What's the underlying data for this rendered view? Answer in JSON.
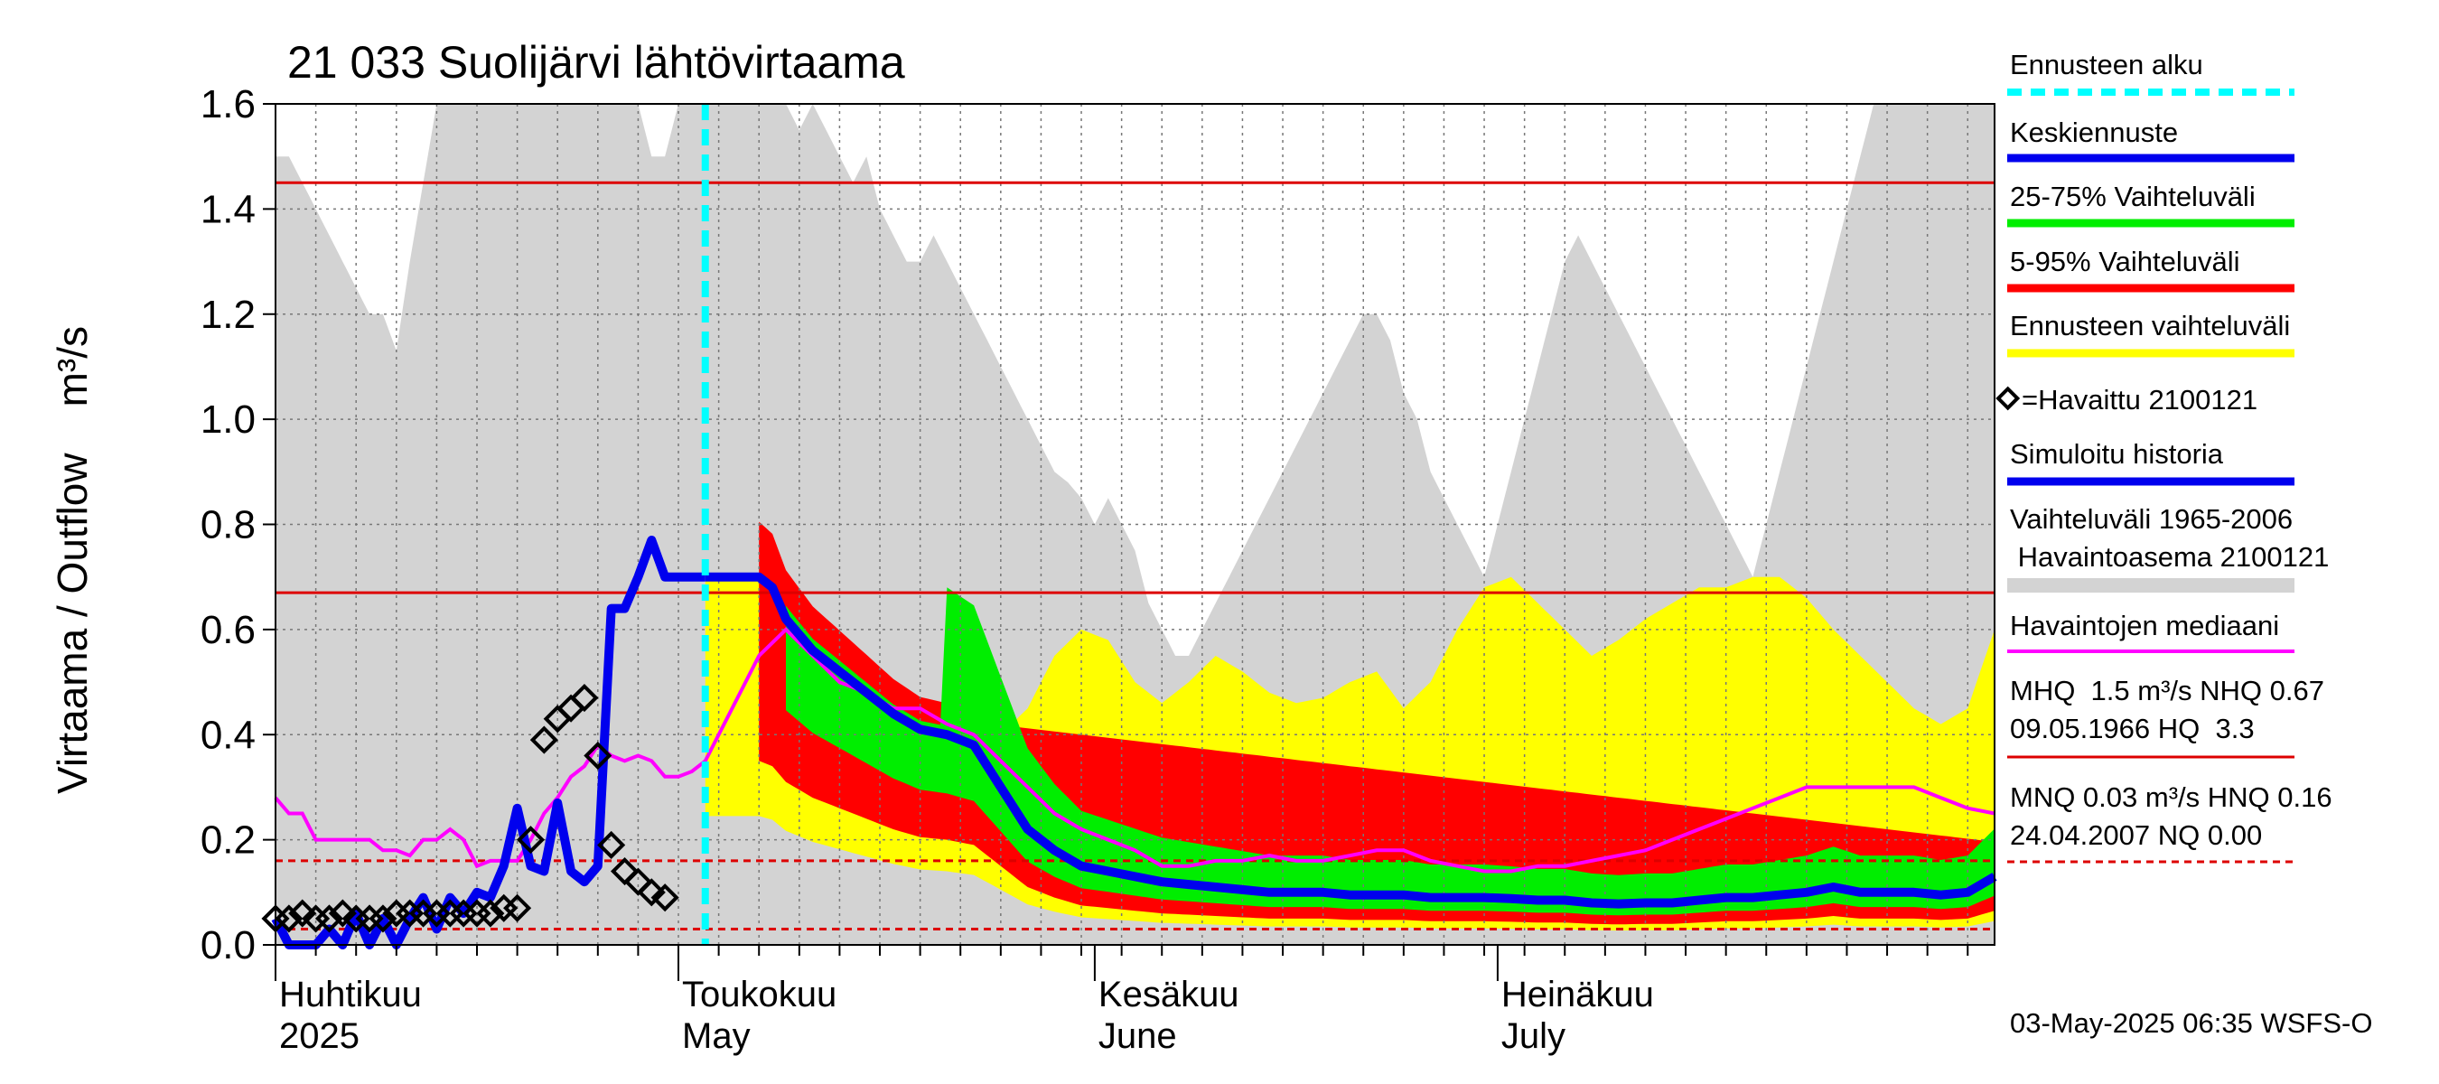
{
  "chart_data": {
    "type": "line",
    "title": "21 033 Suolijärvi lähtövirtaama",
    "ylabel": "Virtaama / Outflow    m³/s",
    "ylim": [
      0,
      1.6
    ],
    "yticks": [
      "0.0",
      "0.2",
      "0.4",
      "0.6",
      "0.8",
      "1.0",
      "1.2",
      "1.4",
      "1.6"
    ],
    "xlim_day": [
      0,
      128
    ],
    "forecast_start_day": 32,
    "months": [
      {
        "fi": "Huhtikuu",
        "en": "2025",
        "day": 0
      },
      {
        "fi": "Toukokuu",
        "en": "May",
        "day": 30
      },
      {
        "fi": "Kesäkuu",
        "en": "June",
        "day": 61
      },
      {
        "fi": "Heinäkuu",
        "en": "July",
        "day": 91
      }
    ],
    "reference_lines": {
      "MHQ": 1.45,
      "NHQ": 0.67,
      "HNQ": 0.16,
      "MNQ": 0.03
    },
    "series": [
      {
        "name": "Vaihteluväli 1965-2006 max",
        "x": [
          0,
          1,
          2,
          3,
          4,
          5,
          6,
          7,
          8,
          9,
          10,
          11,
          12,
          13,
          14,
          15,
          16,
          17,
          18,
          19,
          20,
          21,
          22,
          23,
          24,
          25,
          26,
          27,
          28,
          29,
          30,
          31,
          32,
          33,
          34,
          35,
          36,
          37,
          38,
          39,
          40,
          41,
          42,
          43,
          44,
          45,
          46,
          47,
          48,
          49,
          50,
          51,
          52,
          53,
          54,
          55,
          56,
          57,
          58,
          59,
          60,
          61,
          62,
          63,
          64,
          65,
          66,
          67,
          68,
          69,
          70,
          71,
          72,
          73,
          74,
          75,
          76,
          77,
          78,
          79,
          80,
          81,
          82,
          83,
          84,
          85,
          86,
          87,
          88,
          89,
          90,
          91,
          92,
          93,
          94,
          95,
          96,
          97,
          98,
          99,
          100,
          101,
          102,
          103,
          104,
          105,
          106,
          107,
          108,
          109,
          110,
          111,
          112,
          113,
          114,
          115,
          116,
          117,
          118,
          119,
          120,
          121,
          122,
          123,
          124,
          125,
          126,
          127,
          128
        ],
        "values": [
          1.5,
          1.5,
          1.45,
          1.4,
          1.35,
          1.3,
          1.25,
          1.2,
          1.2,
          1.13,
          1.3,
          1.45,
          1.6,
          1.6,
          1.6,
          1.6,
          1.6,
          1.6,
          1.6,
          1.6,
          1.6,
          1.6,
          1.6,
          1.6,
          1.6,
          1.6,
          1.6,
          1.6,
          1.5,
          1.5,
          1.6,
          1.6,
          1.6,
          1.6,
          1.6,
          1.6,
          1.6,
          1.6,
          1.6,
          1.55,
          1.6,
          1.55,
          1.5,
          1.45,
          1.5,
          1.4,
          1.35,
          1.3,
          1.3,
          1.35,
          1.3,
          1.25,
          1.2,
          1.15,
          1.1,
          1.05,
          1.0,
          0.95,
          0.9,
          0.88,
          0.85,
          0.8,
          0.85,
          0.8,
          0.75,
          0.65,
          0.6,
          0.55,
          0.55,
          0.6,
          0.65,
          0.7,
          0.75,
          0.8,
          0.85,
          0.9,
          0.95,
          1.0,
          1.05,
          1.1,
          1.15,
          1.2,
          1.2,
          1.15,
          1.05,
          1.0,
          0.9,
          0.85,
          0.8,
          0.75,
          0.7,
          0.8,
          0.9,
          1.0,
          1.1,
          1.2,
          1.3,
          1.35,
          1.3,
          1.25,
          1.2,
          1.15,
          1.1,
          1.05,
          1.0,
          0.95,
          0.9,
          0.85,
          0.8,
          0.75,
          0.7,
          0.8,
          0.9,
          1.0,
          1.1,
          1.2,
          1.3,
          1.4,
          1.5,
          1.6,
          1.6,
          1.6,
          1.6,
          1.6,
          1.6,
          1.6,
          1.6,
          1.6,
          1.6
        ]
      },
      {
        "name": "Ennusteen vaihteluväli max",
        "x": [
          32,
          34,
          36,
          37,
          38,
          40,
          42,
          44,
          46,
          48,
          50,
          52,
          54,
          56,
          58,
          60,
          62,
          64,
          66,
          68,
          70,
          72,
          74,
          76,
          78,
          80,
          82,
          84,
          86,
          88,
          90,
          92,
          94,
          96,
          98,
          100,
          102,
          104,
          106,
          108,
          110,
          112,
          114,
          116,
          118,
          120,
          122,
          124,
          126,
          128
        ],
        "values": [
          0.7,
          0.7,
          0.7,
          0.69,
          0.67,
          0.6,
          0.55,
          0.52,
          0.48,
          0.46,
          0.46,
          0.4,
          0.4,
          0.45,
          0.55,
          0.6,
          0.58,
          0.5,
          0.46,
          0.5,
          0.55,
          0.52,
          0.48,
          0.46,
          0.47,
          0.5,
          0.52,
          0.45,
          0.5,
          0.6,
          0.68,
          0.7,
          0.65,
          0.6,
          0.55,
          0.58,
          0.62,
          0.65,
          0.68,
          0.68,
          0.7,
          0.7,
          0.66,
          0.6,
          0.55,
          0.5,
          0.45,
          0.42,
          0.45,
          0.6
        ]
      },
      {
        "name": "Keskiennuste",
        "x": [
          32,
          34,
          36,
          37,
          38,
          40,
          42,
          44,
          46,
          48,
          50,
          52,
          54,
          56,
          58,
          60,
          62,
          64,
          66,
          68,
          70,
          72,
          74,
          76,
          78,
          80,
          82,
          84,
          86,
          88,
          90,
          92,
          94,
          96,
          98,
          100,
          102,
          104,
          106,
          108,
          110,
          112,
          114,
          116,
          118,
          120,
          122,
          124,
          126,
          128
        ],
        "values": [
          0.7,
          0.7,
          0.7,
          0.68,
          0.62,
          0.56,
          0.52,
          0.48,
          0.44,
          0.41,
          0.4,
          0.38,
          0.3,
          0.22,
          0.18,
          0.15,
          0.14,
          0.13,
          0.12,
          0.115,
          0.11,
          0.105,
          0.1,
          0.1,
          0.1,
          0.095,
          0.095,
          0.095,
          0.09,
          0.09,
          0.09,
          0.088,
          0.085,
          0.085,
          0.08,
          0.078,
          0.08,
          0.08,
          0.085,
          0.09,
          0.09,
          0.095,
          0.1,
          0.11,
          0.1,
          0.1,
          0.1,
          0.095,
          0.1,
          0.13
        ]
      },
      {
        "name": "Havaintojen mediaani",
        "x": [
          0,
          1,
          2,
          3,
          4,
          5,
          6,
          7,
          8,
          9,
          10,
          11,
          12,
          13,
          14,
          15,
          16,
          17,
          18,
          19,
          20,
          21,
          22,
          23,
          24,
          25,
          26,
          27,
          28,
          29,
          30,
          31,
          32,
          33,
          34,
          36,
          38,
          40,
          42,
          44,
          46,
          48,
          50,
          52,
          54,
          56,
          58,
          60,
          62,
          64,
          66,
          68,
          70,
          72,
          74,
          76,
          78,
          80,
          82,
          84,
          86,
          88,
          90,
          92,
          94,
          96,
          98,
          100,
          102,
          104,
          106,
          108,
          110,
          112,
          114,
          116,
          118,
          120,
          122,
          124,
          126,
          128
        ],
        "values": [
          0.28,
          0.25,
          0.25,
          0.2,
          0.2,
          0.2,
          0.2,
          0.2,
          0.18,
          0.18,
          0.17,
          0.2,
          0.2,
          0.22,
          0.2,
          0.15,
          0.16,
          0.16,
          0.16,
          0.2,
          0.25,
          0.28,
          0.32,
          0.34,
          0.38,
          0.36,
          0.35,
          0.36,
          0.35,
          0.32,
          0.32,
          0.33,
          0.35,
          0.4,
          0.45,
          0.55,
          0.6,
          0.55,
          0.5,
          0.48,
          0.45,
          0.45,
          0.42,
          0.4,
          0.35,
          0.3,
          0.25,
          0.22,
          0.2,
          0.18,
          0.15,
          0.15,
          0.16,
          0.16,
          0.17,
          0.16,
          0.16,
          0.17,
          0.18,
          0.18,
          0.16,
          0.15,
          0.14,
          0.14,
          0.15,
          0.15,
          0.16,
          0.17,
          0.18,
          0.2,
          0.22,
          0.24,
          0.26,
          0.28,
          0.3,
          0.3,
          0.3,
          0.3,
          0.3,
          0.28,
          0.26,
          0.25
        ]
      },
      {
        "name": "Simuloitu historia",
        "x": [
          0,
          1,
          2,
          3,
          4,
          5,
          6,
          7,
          8,
          9,
          10,
          11,
          12,
          13,
          14,
          15,
          16,
          17,
          18,
          19,
          20,
          21,
          22,
          23,
          24,
          25,
          26,
          27,
          28,
          29,
          30,
          31,
          32
        ],
        "values": [
          0.05,
          0.0,
          0.0,
          0.0,
          0.03,
          0.0,
          0.06,
          0.0,
          0.05,
          0.0,
          0.05,
          0.09,
          0.03,
          0.09,
          0.06,
          0.1,
          0.09,
          0.15,
          0.26,
          0.15,
          0.14,
          0.27,
          0.14,
          0.12,
          0.15,
          0.64,
          0.64,
          0.7,
          0.77,
          0.7,
          0.7,
          0.7,
          0.7
        ]
      },
      {
        "name": "Havaittu 2100121",
        "x": [
          0,
          1,
          2,
          3,
          4,
          5,
          6,
          7,
          8,
          9,
          10,
          11,
          12,
          13,
          14,
          15,
          16,
          17,
          18,
          19,
          20,
          21,
          22,
          23,
          24,
          25,
          26,
          27,
          28,
          29
        ],
        "values": [
          0.05,
          0.05,
          0.06,
          0.05,
          0.05,
          0.06,
          0.05,
          0.05,
          0.05,
          0.06,
          0.06,
          0.06,
          0.06,
          0.06,
          0.06,
          0.06,
          0.06,
          0.07,
          0.07,
          0.2,
          0.39,
          0.43,
          0.45,
          0.47,
          0.36,
          0.19,
          0.14,
          0.12,
          0.1,
          0.09
        ]
      }
    ]
  },
  "legend": {
    "forecast_start": "Ennusteen alku",
    "mean_forecast": "Keskiennuste",
    "range_25_75": "25-75% Vaihteluväli",
    "range_5_95": "5-95% Vaihteluväli",
    "forecast_range": "Ennusteen vaihteluväli",
    "observed": "=Havaittu 2100121",
    "simulated": "Simuloitu historia",
    "hist_range_1": "Vaihteluväli 1965-2006",
    "hist_range_2": " Havaintoasema 2100121",
    "median": "Havaintojen mediaani",
    "stats_1": "MHQ  1.5 m³/s NHQ 0.67",
    "stats_2": "09.05.1966 HQ  3.3",
    "stats_3": "MNQ 0.03 m³/s HNQ 0.16",
    "stats_4": "24.04.2007 NQ 0.00"
  },
  "footer": "03-May-2025 06:35 WSFS-O",
  "colors": {
    "hist_range": "#d3d3d3",
    "forecast_range": "#ffff00",
    "range_5_95": "#ff0000",
    "range_25_75": "#00ee00",
    "mean": "#0000ee",
    "median": "#ff00ff",
    "forecast_start": "#00ffff",
    "ref_line": "#dd0000"
  }
}
